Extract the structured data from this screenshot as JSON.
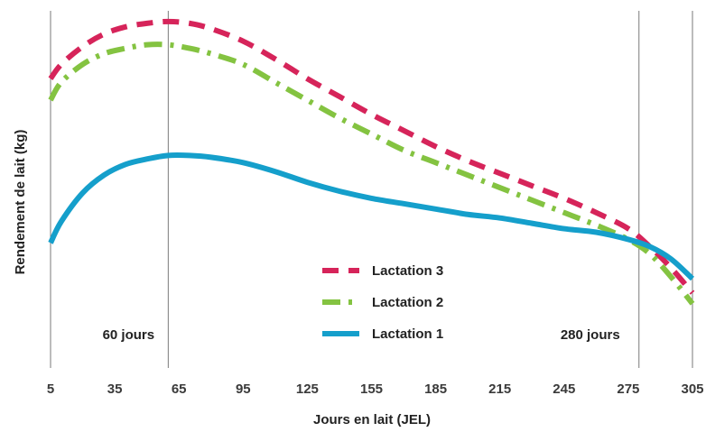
{
  "chart_data": {
    "type": "line",
    "title": "",
    "xlabel": "Jours en lait (JEL)",
    "ylabel": "Rendement de lait (kg)",
    "x_ticks": [
      5,
      35,
      65,
      95,
      125,
      155,
      185,
      215,
      245,
      275,
      305
    ],
    "xlim": [
      5,
      305
    ],
    "ylim": [
      0,
      100
    ],
    "y_ticks_shown": false,
    "grid": false,
    "legend_position": "lower-center",
    "vertical_markers": [
      {
        "x": 5,
        "label": ""
      },
      {
        "x": 60,
        "label": "60 jours"
      },
      {
        "x": 280,
        "label": "280 jours"
      },
      {
        "x": 305,
        "label": ""
      }
    ],
    "series": [
      {
        "name": "Lactation 3",
        "color": "#d6245a",
        "style": "dashed",
        "x": [
          5,
          10,
          20,
          30,
          40,
          50,
          60,
          70,
          80,
          95,
          110,
          125,
          140,
          155,
          170,
          185,
          200,
          215,
          230,
          245,
          260,
          275,
          285,
          295,
          305
        ],
        "y": [
          81,
          85,
          90,
          93.5,
          95.5,
          96.5,
          97,
          96.5,
          95,
          91.5,
          86.5,
          81,
          76,
          71,
          66.5,
          62,
          58,
          54.5,
          51,
          47.5,
          43.5,
          39,
          34,
          28,
          21
        ]
      },
      {
        "name": "Lactation 2",
        "color": "#84c341",
        "style": "dash-dot",
        "x": [
          5,
          10,
          20,
          30,
          40,
          50,
          60,
          70,
          80,
          95,
          110,
          125,
          140,
          155,
          170,
          185,
          200,
          215,
          230,
          245,
          260,
          275,
          285,
          295,
          305
        ],
        "y": [
          75,
          80,
          85,
          88,
          89.5,
          90.5,
          90.5,
          89.5,
          88,
          85,
          80,
          75,
          70,
          65.5,
          61,
          57.5,
          54,
          50.5,
          47,
          43.5,
          40,
          36,
          32,
          25.5,
          18
        ]
      },
      {
        "name": "Lactation 1",
        "color": "#159fcb",
        "style": "solid",
        "x": [
          5,
          10,
          20,
          30,
          40,
          50,
          60,
          70,
          80,
          95,
          110,
          125,
          140,
          155,
          170,
          185,
          200,
          215,
          230,
          245,
          260,
          275,
          285,
          295,
          305
        ],
        "y": [
          35,
          41,
          49,
          54,
          57,
          58.5,
          59.5,
          59.5,
          59,
          57.5,
          55,
          52,
          49.5,
          47.5,
          46,
          44.5,
          43,
          42,
          40.5,
          39,
          38,
          36,
          34,
          30.5,
          25
        ]
      }
    ]
  }
}
